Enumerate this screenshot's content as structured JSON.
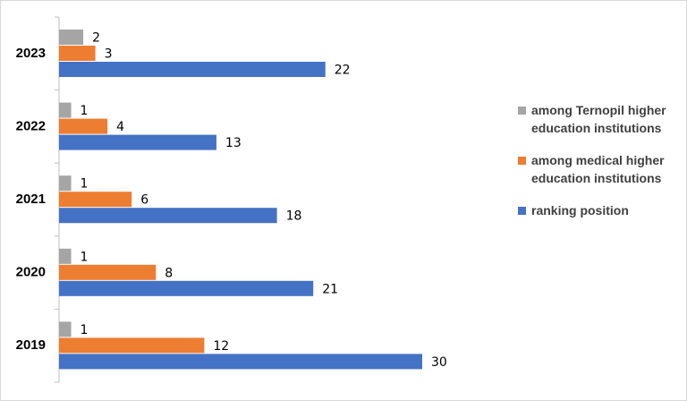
{
  "chart_data": {
    "type": "bar",
    "orientation": "horizontal",
    "categories": [
      "2023",
      "2022",
      "2021",
      "2020",
      "2019"
    ],
    "series": [
      {
        "name": "among Ternopil higher education institutions",
        "color": "#a5a5a5",
        "values": [
          2,
          1,
          1,
          1,
          1
        ]
      },
      {
        "name": "among medical higher education institutions",
        "color": "#ed7d31",
        "values": [
          3,
          4,
          6,
          8,
          12
        ]
      },
      {
        "name": "ranking position",
        "color": "#4472c4",
        "values": [
          22,
          13,
          18,
          21,
          30
        ]
      }
    ],
    "legend": "right"
  }
}
